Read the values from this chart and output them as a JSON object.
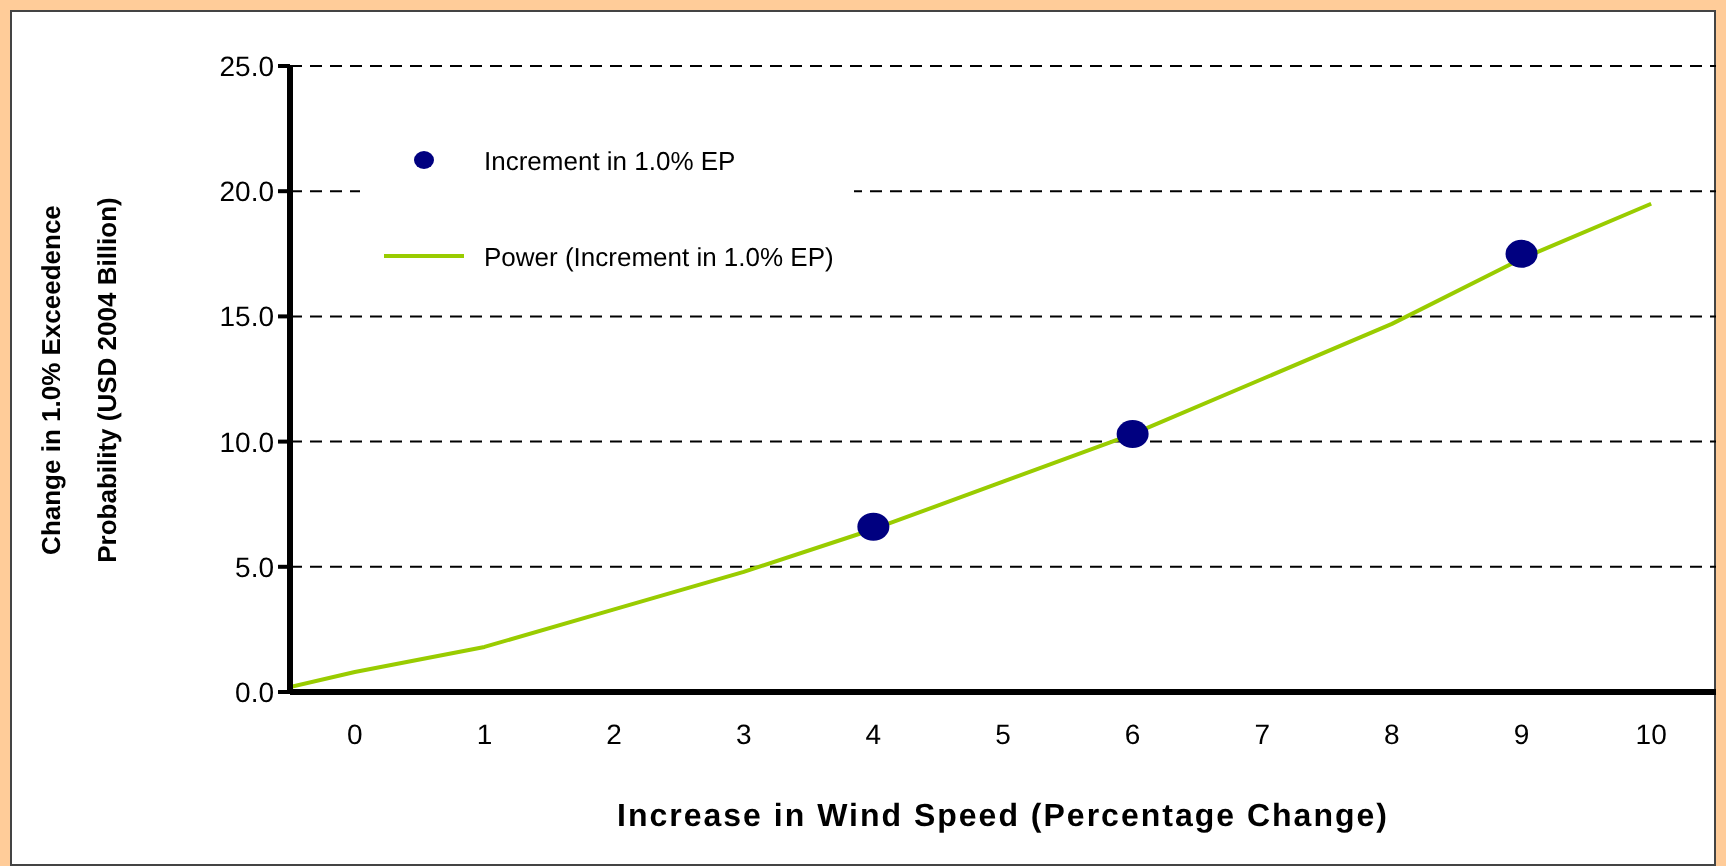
{
  "chart_data": {
    "type": "scatter",
    "xlabel": "Increase in Wind Speed (Percentage Change)",
    "ylabel": "Change in 1.0% Exceedence Probability (USD 2004 Billion)",
    "xlim": [
      -0.5,
      10.5
    ],
    "xticks": [
      0,
      1,
      2,
      3,
      4,
      5,
      6,
      7,
      8,
      9,
      10
    ],
    "ylim": [
      0,
      25
    ],
    "yticks": [
      {
        "value": 0,
        "label": "0.0"
      },
      {
        "value": 5,
        "label": "5.0"
      },
      {
        "value": 10,
        "label": "10.0"
      },
      {
        "value": 15,
        "label": "15.0"
      },
      {
        "value": 20,
        "label": "20.0"
      },
      {
        "value": 25,
        "label": "25.0"
      }
    ],
    "grid": "y",
    "legend": "top left",
    "series": [
      {
        "name": "Increment in 1.0% EP",
        "color": "#000080",
        "marker": "circle",
        "x": [
          4,
          6,
          9
        ],
        "values": [
          6.6,
          10.3,
          17.5
        ]
      },
      {
        "name": "Power (Increment in 1.0% EP)",
        "type": "line",
        "color": "#99cc00",
        "marker": "none",
        "line_style": "solid",
        "x": [
          -0.5,
          0,
          1,
          2,
          3,
          4,
          5,
          6,
          7,
          8,
          9,
          10
        ],
        "values": [
          0.2,
          0.8,
          1.8,
          3.3,
          4.8,
          6.5,
          8.4,
          10.3,
          12.5,
          14.7,
          17.3,
          19.5
        ]
      }
    ]
  }
}
